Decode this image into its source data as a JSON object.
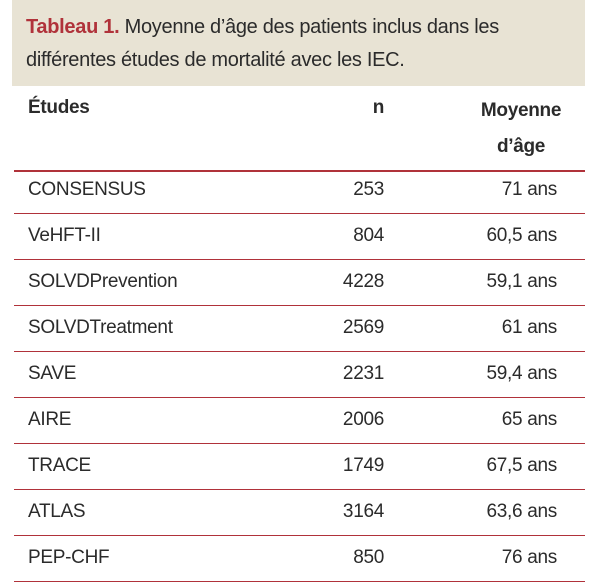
{
  "caption": {
    "label": "Tableau 1.",
    "text": "Moyenne d’âge des patients inclus dans les différentes études de mortalité avec les IEC."
  },
  "table": {
    "header": [
      "Études",
      "n",
      "Moyenne d’âge"
    ],
    "rows": [
      [
        "CONSENSUS",
        "253",
        "71 ans"
      ],
      [
        "VeHFT-II",
        "804",
        "60,5 ans"
      ],
      [
        "SOLVDPrevention",
        "4228",
        "59,1 ans"
      ],
      [
        "SOLVDTreatment",
        "2569",
        "61 ans"
      ],
      [
        "SAVE",
        "2231",
        "59,4 ans"
      ],
      [
        "AIRE",
        "2006",
        "65 ans"
      ],
      [
        "TRACE",
        "1749",
        "67,5 ans"
      ],
      [
        "ATLAS",
        "3164",
        "63,6 ans"
      ],
      [
        "PEP-CHF",
        "850",
        "76 ans"
      ]
    ]
  }
}
